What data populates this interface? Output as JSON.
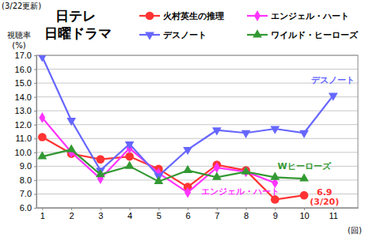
{
  "chart_data": {
    "type": "line",
    "title": "日テレ 日曜ドラマ",
    "subtitle": "(3/22更新)",
    "y_label": "視聴率 (%)",
    "x_label": "(回)",
    "x": [
      1,
      2,
      3,
      4,
      5,
      6,
      7,
      8,
      9,
      10,
      11
    ],
    "xlim": [
      0.8,
      11.85
    ],
    "xticks": [
      1,
      2,
      3,
      4,
      5,
      6,
      7,
      8,
      9,
      10,
      11
    ],
    "ylim": [
      6,
      17
    ],
    "yticks": [
      {
        "value": 6,
        "label": "6.0"
      },
      {
        "value": 7,
        "label": "7.0"
      },
      {
        "value": 8,
        "label": "8.0"
      },
      {
        "value": 9,
        "label": "9.0"
      },
      {
        "value": 10,
        "label": "10.0"
      },
      {
        "value": 11,
        "label": "11.0"
      },
      {
        "value": 12,
        "label": "12.0"
      },
      {
        "value": 13,
        "label": "13.0"
      },
      {
        "value": 14,
        "label": "14.0"
      },
      {
        "value": 15,
        "label": "15.0"
      },
      {
        "value": 16,
        "label": "16.0"
      },
      {
        "value": 17,
        "label": "17.0"
      }
    ],
    "grid": true,
    "legend": "top",
    "series": [
      {
        "name": "火村英生の推理",
        "color": "#ff3333",
        "marker": "circle",
        "values": [
          11.1,
          9.9,
          9.5,
          9.7,
          8.8,
          7.5,
          9.1,
          8.7,
          6.6,
          6.9,
          null
        ]
      },
      {
        "name": "エンジェル・ハート",
        "color": "#ff33ff",
        "marker": "diamond",
        "values": [
          12.5,
          10.0,
          8.1,
          10.3,
          8.5,
          7.1,
          8.9,
          8.6,
          7.8,
          null,
          null
        ]
      },
      {
        "name": "デスノート",
        "color": "#6666ff",
        "marker": "triangle-down",
        "values": [
          16.9,
          12.3,
          8.7,
          10.6,
          8.3,
          10.2,
          11.6,
          11.4,
          11.7,
          11.4,
          14.1
        ]
      },
      {
        "name": "ワイルド・ヒーローズ",
        "color": "#339933",
        "marker": "triangle",
        "values": [
          9.7,
          10.2,
          8.4,
          9.0,
          7.9,
          8.7,
          8.2,
          8.6,
          8.2,
          8.1,
          null
        ]
      }
    ],
    "annotations": [
      {
        "text": "デスノート",
        "x": 11.0,
        "y": 15.0,
        "color": "#6666ff"
      },
      {
        "text": "Wヒーローズ",
        "x": 10.0,
        "y": 8.8,
        "color": "#339933"
      },
      {
        "text": "エンジェル・ハート",
        "x": 7.8,
        "y": 6.95,
        "color": "#ff33ff"
      },
      {
        "text": "6.9",
        "x": 10.7,
        "y": 6.9,
        "color": "#ff3333"
      },
      {
        "text": "(3/20)",
        "x": 10.7,
        "y": 6.25,
        "color": "#ff3333"
      }
    ]
  }
}
